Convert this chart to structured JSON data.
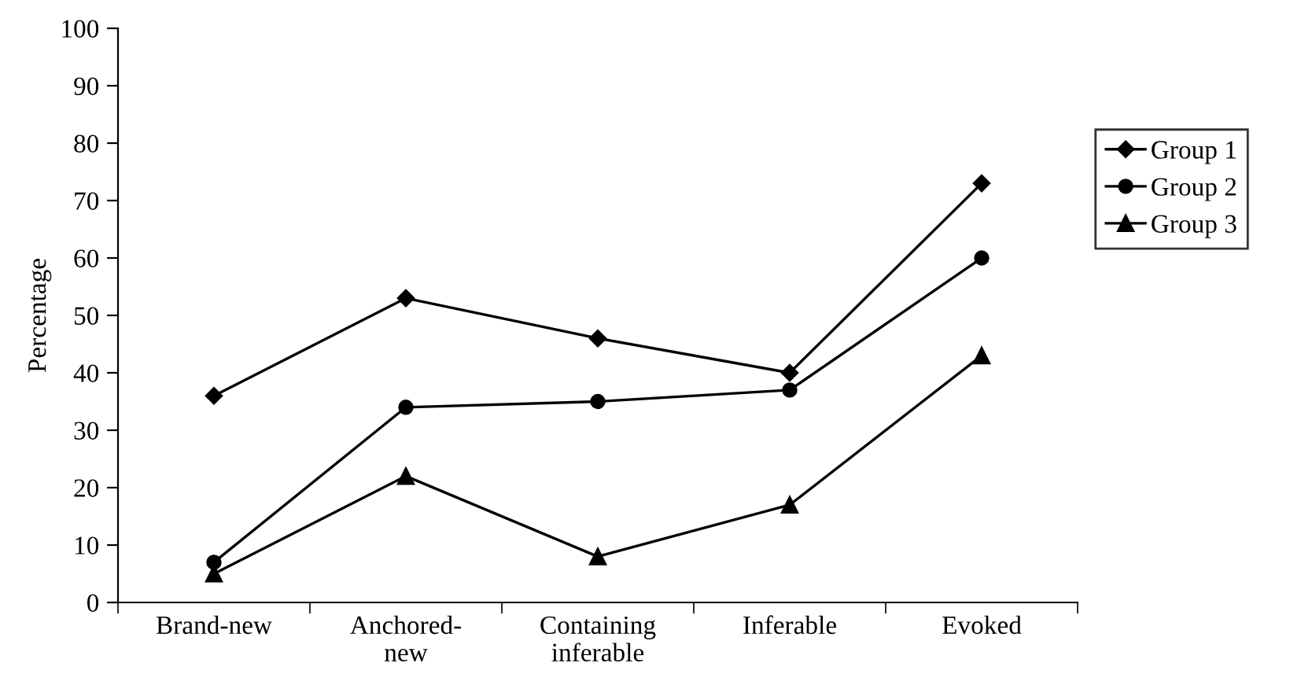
{
  "chart_data": {
    "type": "line",
    "ylabel": "Percentage",
    "categories": [
      "Brand-new",
      "Anchored-\nnew",
      "Containing\ninferable",
      "Inferable",
      "Evoked"
    ],
    "series": [
      {
        "name": "Group 1",
        "color": "#000000",
        "marker": "diamond",
        "values": [
          36,
          53,
          46,
          40,
          73
        ]
      },
      {
        "name": "Group 2",
        "color": "#000000",
        "marker": "circle",
        "values": [
          7,
          34,
          35,
          37,
          60
        ]
      },
      {
        "name": "Group 3",
        "color": "#000000",
        "marker": "triangle",
        "values": [
          5,
          22,
          8,
          17,
          43
        ]
      }
    ],
    "ylim": [
      0,
      100
    ],
    "yticks": [
      0,
      10,
      20,
      30,
      40,
      50,
      60,
      70,
      80,
      90,
      100
    ],
    "grid": false,
    "legend": "right",
    "line_style": "solid"
  }
}
